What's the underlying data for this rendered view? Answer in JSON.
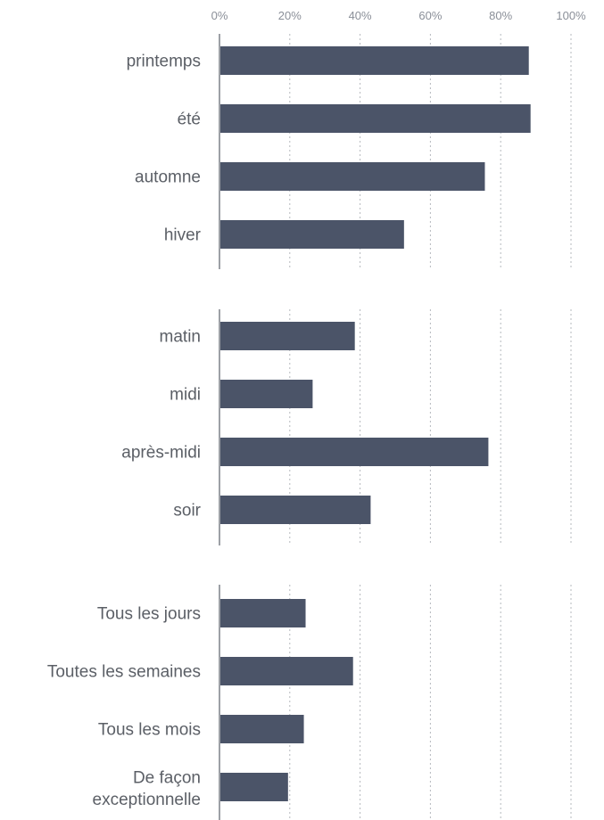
{
  "chart_data": {
    "type": "bar",
    "orientation": "horizontal",
    "x_ticks": [
      "0%",
      "20%",
      "40%",
      "60%",
      "80%",
      "100%"
    ],
    "xlim": [
      0,
      100
    ],
    "grid": true,
    "colors": {
      "bar": "#4b5468",
      "grid": "#b5b8bd",
      "axis": "#7d8188",
      "tick": "#8a8f98",
      "label": "#5b5f66"
    },
    "panels": [
      {
        "categories": [
          "printemps",
          "été",
          "automne",
          "hiver"
        ],
        "values": [
          88,
          88.5,
          75.5,
          52.5
        ]
      },
      {
        "categories": [
          "matin",
          "midi",
          "après-midi",
          "soir"
        ],
        "values": [
          38.5,
          26.5,
          76.5,
          43
        ]
      },
      {
        "categories": [
          "Tous les jours",
          "Toutes les semaines",
          "Tous les mois",
          "De façon exceptionnelle"
        ],
        "values": [
          24.5,
          38,
          24,
          19.5
        ]
      }
    ]
  }
}
